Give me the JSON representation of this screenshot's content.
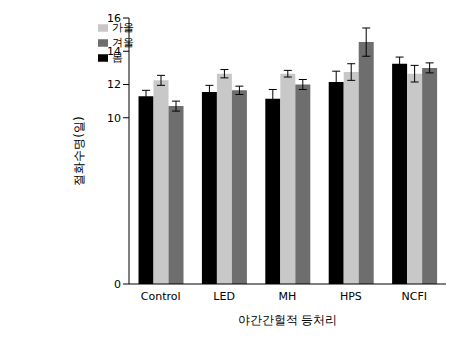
{
  "chart_data": {
    "type": "bar",
    "x_label": "야간간헐적 등처리",
    "y_label": "절화수명(일)",
    "categories": [
      "Control",
      "LED",
      "MH",
      "HPS",
      "NCFI"
    ],
    "series": [
      {
        "name": "봄",
        "color": "#000000",
        "values": [
          11.3,
          11.55,
          11.15,
          12.15,
          13.25
        ],
        "errors": [
          0.35,
          0.4,
          0.55,
          0.65,
          0.4
        ]
      },
      {
        "name": "가을",
        "color": "#c8c8c8",
        "values": [
          12.25,
          12.65,
          12.65,
          12.75,
          12.65
        ],
        "errors": [
          0.3,
          0.25,
          0.2,
          0.5,
          0.5
        ]
      },
      {
        "name": "겨울",
        "color": "#6e6e6e",
        "values": [
          10.7,
          11.65,
          12.0,
          14.55,
          13.0
        ],
        "errors": [
          0.3,
          0.25,
          0.3,
          0.85,
          0.3
        ]
      }
    ],
    "ylim": [
      0,
      16
    ],
    "yticks": [
      0,
      10,
      12,
      14,
      16
    ],
    "legend": "upper left",
    "grid": false
  }
}
